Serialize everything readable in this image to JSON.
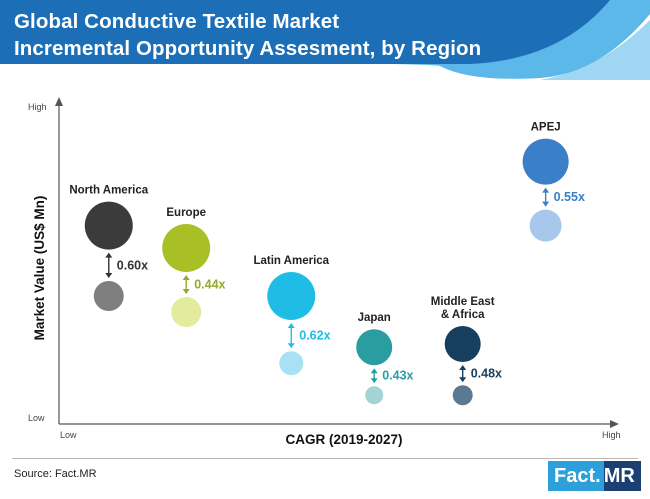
{
  "title": {
    "line1": "Global Conductive Textile Market",
    "line2": "Incremental Opportunity Assesment, by Region"
  },
  "colors": {
    "header_blue": "#1c6fb6",
    "header_light": "#5bb8e8",
    "header_pale": "#9fd6f3",
    "axis": "#555555"
  },
  "chart_data": {
    "type": "bubble",
    "title": "Global Conductive Textile Market Incremental Opportunity Assesment, by Region",
    "xlabel": "CAGR (2019-2027)",
    "ylabel": "Market Value (US$ Mn)",
    "x_axis_ends": [
      "Low",
      "High"
    ],
    "y_axis_ends": [
      "Low",
      "High"
    ],
    "scale": "qualitative 0-100",
    "xlim": [
      0,
      100
    ],
    "ylim": [
      0,
      100
    ],
    "grid": false,
    "legend": "none",
    "series": [
      {
        "name": "North America",
        "label": "North America",
        "x": 9,
        "y_2027": 62,
        "y_2019": 40,
        "r_2027": 24,
        "r_2019": 15,
        "multiplier": "0.60x",
        "color_big": "#3b3b3b",
        "color_small": "#7f7f7f",
        "color_label": "#333333"
      },
      {
        "name": "Europe",
        "label": "Europe",
        "x": 23,
        "y_2027": 55,
        "y_2019": 35,
        "r_2027": 24,
        "r_2019": 15,
        "multiplier": "0.44x",
        "color_big": "#a8c026",
        "color_small": "#e3ec9c",
        "color_label": "#96a92a"
      },
      {
        "name": "Latin America",
        "label": "Latin America",
        "x": 42,
        "y_2027": 40,
        "y_2019": 19,
        "r_2027": 24,
        "r_2019": 12,
        "multiplier": "0.62x",
        "color_big": "#1fbde5",
        "color_small": "#a7e1f3",
        "color_label": "#1fbde5"
      },
      {
        "name": "Japan",
        "label": "Japan",
        "x": 57,
        "y_2027": 24,
        "y_2019": 9,
        "r_2027": 18,
        "r_2019": 9,
        "multiplier": "0.43x",
        "color_big": "#2a9da0",
        "color_small": "#a3d3d4",
        "color_label": "#2a9da0"
      },
      {
        "name": "Middle East & Africa",
        "label": "Middle East\n& Africa",
        "x": 73,
        "y_2027": 25,
        "y_2019": 9,
        "r_2027": 18,
        "r_2019": 10,
        "multiplier": "0.48x",
        "color_big": "#163e5e",
        "color_small": "#5b7a92",
        "color_label": "#163e5e"
      },
      {
        "name": "APEJ",
        "label": "APEJ",
        "x": 88,
        "y_2027": 82,
        "y_2019": 62,
        "r_2027": 23,
        "r_2019": 16,
        "multiplier": "0.55x",
        "color_big": "#3a7fc8",
        "color_small": "#a8c8eb",
        "color_label": "#3a7fc8"
      }
    ]
  },
  "footer": {
    "source": "Source: Fact.MR",
    "logo_a": "Fact.",
    "logo_b": "MR"
  }
}
